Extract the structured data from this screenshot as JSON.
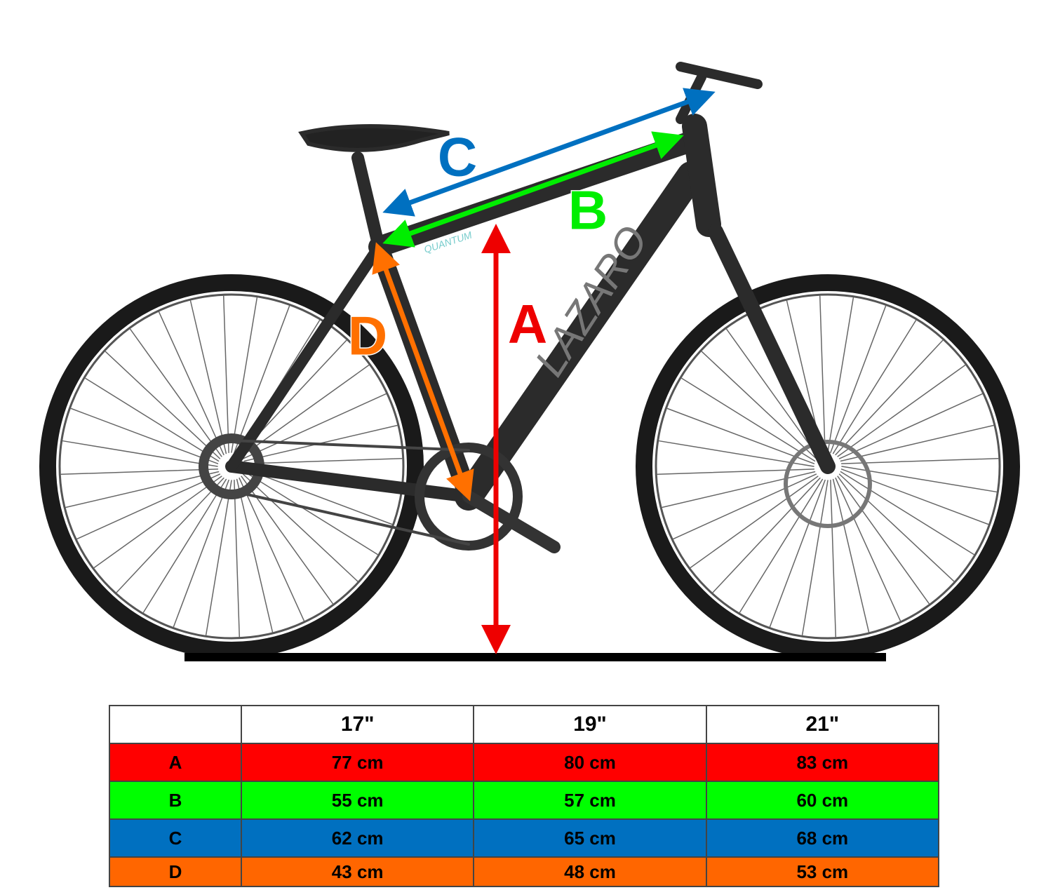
{
  "diagram": {
    "frame_brand": "LAZARO",
    "frame_model": "QUANTUM",
    "arrows": [
      {
        "label": "C"
      },
      {
        "label": "B"
      },
      {
        "label": "A"
      },
      {
        "label": "D"
      }
    ]
  },
  "table": {
    "header": [
      "17\"",
      "19\"",
      "21\""
    ],
    "rows": [
      [
        "A",
        "77 cm",
        "80 cm",
        "83 cm"
      ],
      [
        "B",
        "55 cm",
        "57 cm",
        "60 cm"
      ],
      [
        "C",
        "62 cm",
        "65 cm",
        "68 cm"
      ],
      [
        "D",
        "43 cm",
        "48 cm",
        "53 cm"
      ]
    ]
  }
}
